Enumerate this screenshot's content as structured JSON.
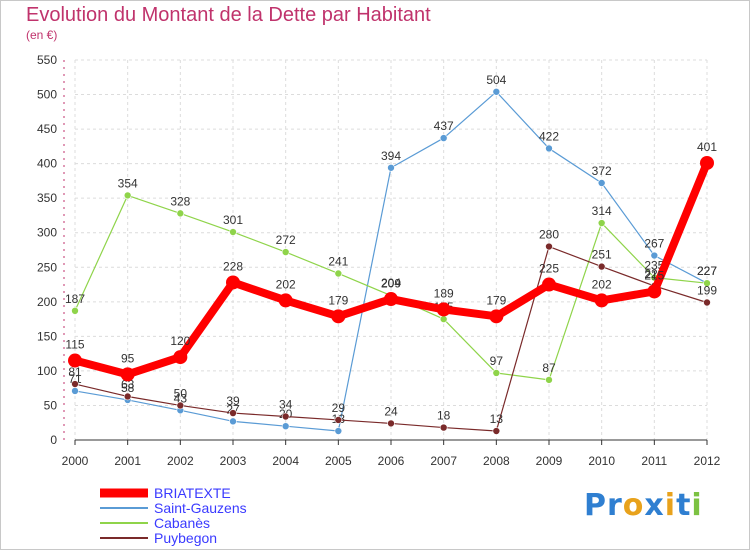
{
  "title": "Evolution du Montant de la Dette par Habitant",
  "subtitle": "(en €)",
  "logo": {
    "letters": [
      "P",
      "r",
      "o",
      "x",
      "i",
      "t",
      "i"
    ],
    "colors": [
      "#2f7fd1",
      "#2f7fd1",
      "#e8a21c",
      "#2f7fd1",
      "#e8a21c",
      "#2f7fd1",
      "#7cc242"
    ]
  },
  "chart_data": {
    "type": "line",
    "x": [
      "2000",
      "2001",
      "2002",
      "2003",
      "2004",
      "2005",
      "2006",
      "2007",
      "2008",
      "2009",
      "2010",
      "2011",
      "2012"
    ],
    "ylim": [
      0,
      550
    ],
    "yticks": [
      0,
      50,
      100,
      150,
      200,
      250,
      300,
      350,
      400,
      450,
      500,
      550
    ],
    "grid": true,
    "legend_position": "bottom-left",
    "series": [
      {
        "name": "BRIATEXTE",
        "color": "#ff0000",
        "width": 8,
        "marker": 7,
        "values": [
          115,
          95,
          120,
          228,
          202,
          179,
          204,
          189,
          179,
          225,
          202,
          215,
          401
        ]
      },
      {
        "name": "Saint-Gauzens",
        "color": "#5a9bd5",
        "width": 1.2,
        "marker": 3.5,
        "values": [
          71,
          58,
          43,
          27,
          20,
          13,
          394,
          437,
          504,
          422,
          372,
          267,
          227
        ]
      },
      {
        "name": "Cabanès",
        "color": "#8fd44a",
        "width": 1.2,
        "marker": 3.5,
        "values": [
          187,
          354,
          328,
          301,
          272,
          241,
          209,
          175,
          97,
          87,
          314,
          235,
          227
        ]
      },
      {
        "name": "Puybegon",
        "color": "#7a2a2a",
        "width": 1.2,
        "marker": 3.5,
        "values": [
          81,
          63,
          50,
          39,
          34,
          29,
          24,
          18,
          13,
          280,
          251,
          223,
          199
        ]
      }
    ]
  }
}
